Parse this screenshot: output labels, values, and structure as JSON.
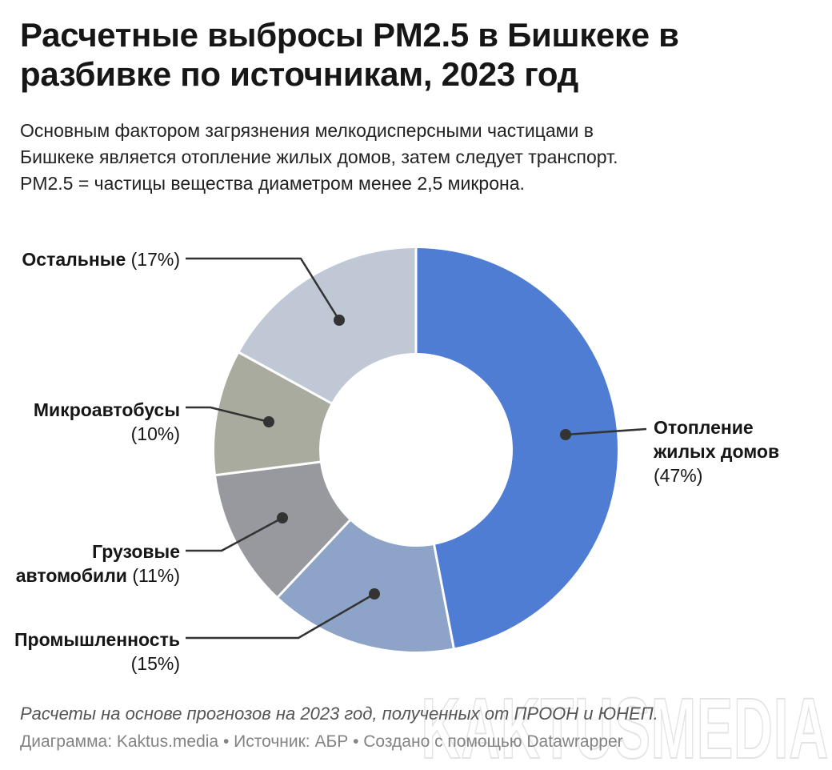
{
  "header": {
    "title_line1": "Расчетные выбросы PM2.5 в Бишкеке в",
    "title_line2": "разбивке по источникам, 2023 год",
    "desc_line1": "Основным фактором загрязнения мелкодисперсными частицами в",
    "desc_line2": "Бишкеке является отопление жилых домов, затем следует транспорт.",
    "desc_line3": "PM2.5 = частицы вещества диаметром менее 2,5 микрона."
  },
  "chart_data": {
    "type": "pie",
    "subtype": "donut",
    "unit": "%",
    "direction": "clockwise",
    "start_angle_deg": 0,
    "inner_radius_ratio": 0.48,
    "slices": [
      {
        "label": "Отопление жилых домов",
        "value": 47,
        "color": "#4e7dd3"
      },
      {
        "label": "Промышленность",
        "value": 15,
        "color": "#8da4c8"
      },
      {
        "label": "Грузовые автомобили",
        "value": 11,
        "color": "#97999e"
      },
      {
        "label": "Микроавтобусы",
        "value": 10,
        "color": "#a9ab9e"
      },
      {
        "label": "Остальные",
        "value": 17,
        "color": "#bfc8d4"
      }
    ],
    "title": "Расчетные выбросы PM2.5 в Бишкеке в разбивке по источникам, 2023 год",
    "legend_position": "callout-labels"
  },
  "callouts": {
    "ostalnye": {
      "line1": "Остальные",
      "pct": "(17%)"
    },
    "mikroavtobusy": {
      "line1": "Микроавтобусы",
      "pct": "(10%)"
    },
    "gruzovye": {
      "line1": "Грузовые",
      "line2": "автомобили",
      "pct": "(11%)"
    },
    "promyshlennost": {
      "line1": "Промышленность",
      "pct": "(15%)"
    },
    "otoplenie": {
      "line1": "Отопление",
      "line2": "жилых домов",
      "pct": "(47%)"
    }
  },
  "footer": {
    "note": "Расчеты на основе прогнозов на 2023 год, полученных от ПРООН и ЮНЕП.",
    "attribution": "Диаграмма: Kaktus.media • Источник: АБР • Создано с помощью Datawrapper"
  },
  "watermark": "KAKTUSMEDIA",
  "styles": {
    "connector_color": "#333333",
    "text_color": "#161616",
    "gap_color": "#ffffff"
  }
}
